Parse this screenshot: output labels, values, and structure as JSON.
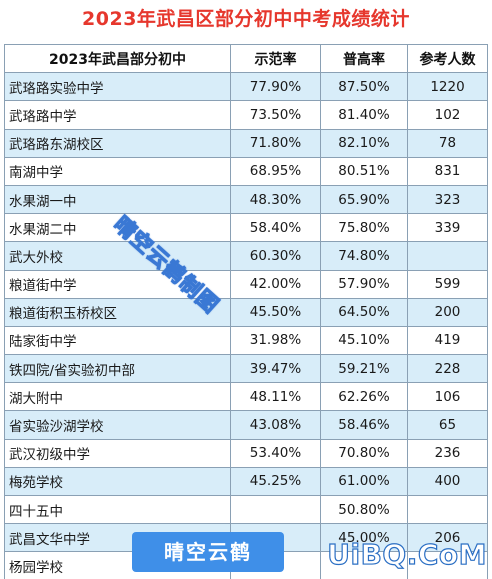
{
  "title": "2023年武昌区部分初中中考成绩统计",
  "table": {
    "headers": [
      "2023年武昌部分初中",
      "示范率",
      "普高率",
      "参考人数"
    ],
    "rows": [
      {
        "school": "武珞路实验中学",
        "shifan": "77.90%",
        "pugao": "87.50%",
        "count": "1220"
      },
      {
        "school": "武珞路中学",
        "shifan": "73.50%",
        "pugao": "81.40%",
        "count": "102"
      },
      {
        "school": "武珞路东湖校区",
        "shifan": "71.80%",
        "pugao": "82.10%",
        "count": "78"
      },
      {
        "school": "南湖中学",
        "shifan": "68.95%",
        "pugao": "80.51%",
        "count": "831"
      },
      {
        "school": "水果湖一中",
        "shifan": "48.30%",
        "pugao": "65.90%",
        "count": "323"
      },
      {
        "school": "水果湖二中",
        "shifan": "58.40%",
        "pugao": "75.80%",
        "count": "339"
      },
      {
        "school": "武大外校",
        "shifan": "60.30%",
        "pugao": "74.80%",
        "count": ""
      },
      {
        "school": "粮道街中学",
        "shifan": "42.00%",
        "pugao": "57.90%",
        "count": "599"
      },
      {
        "school": "粮道街积玉桥校区",
        "shifan": "45.50%",
        "pugao": "64.50%",
        "count": "200"
      },
      {
        "school": "陆家街中学",
        "shifan": "31.98%",
        "pugao": "45.10%",
        "count": "419"
      },
      {
        "school": "铁四院/省实验初中部",
        "shifan": "39.47%",
        "pugao": "59.21%",
        "count": "228"
      },
      {
        "school": "湖大附中",
        "shifan": "48.11%",
        "pugao": "62.26%",
        "count": "106"
      },
      {
        "school": "省实验沙湖学校",
        "shifan": "43.08%",
        "pugao": "58.46%",
        "count": "65"
      },
      {
        "school": "武汉初级中学",
        "shifan": "53.40%",
        "pugao": "70.80%",
        "count": "236"
      },
      {
        "school": "梅苑学校",
        "shifan": "45.25%",
        "pugao": "61.00%",
        "count": "400"
      },
      {
        "school": "四十五中",
        "shifan": "",
        "pugao": "50.80%",
        "count": ""
      },
      {
        "school": "武昌文华中学",
        "shifan": "",
        "pugao": "45.00%",
        "count": "206"
      },
      {
        "school": "杨园学校",
        "shifan": "",
        "pugao": "",
        "count": ""
      }
    ]
  },
  "watermark": {
    "diagonal_text": "晴空云鹤制图",
    "badge_text": "晴空云鹤",
    "site_text": "UiBQ.CoM",
    "color": "#3a78d4"
  },
  "colors": {
    "title": "#e6372d",
    "stripe": "#d8edf9",
    "border": "#8aa0b4"
  }
}
